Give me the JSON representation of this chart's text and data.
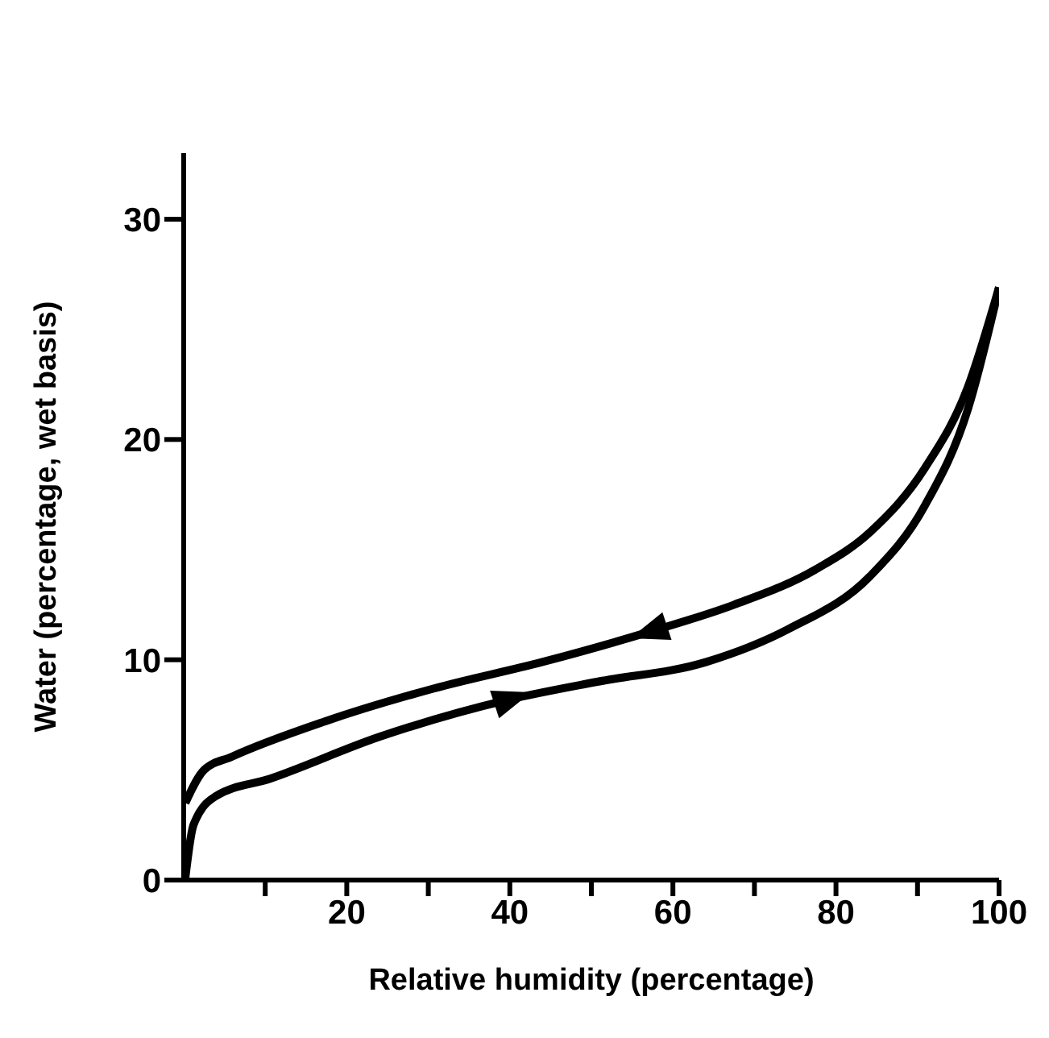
{
  "chart_data": {
    "type": "line",
    "xlabel": "Relative humidity (percentage)",
    "ylabel": "Water (percentage, wet basis)",
    "xlim": [
      0,
      100
    ],
    "ylim": [
      0,
      33
    ],
    "xticks": [
      {
        "value": 10,
        "label": null
      },
      20,
      {
        "value": 30,
        "label": null
      },
      40,
      {
        "value": 50,
        "label": null
      },
      60,
      {
        "value": 70,
        "label": null
      },
      80,
      {
        "value": 90,
        "label": null
      },
      100
    ],
    "yticks": [
      0,
      10,
      20,
      30
    ],
    "series": [
      {
        "color": "#000000",
        "x": [
          0.2,
          2.5,
          5.9,
          17.3,
          30.7,
          44,
          57.4,
          67.5,
          77.5,
          84.2,
          90.9,
          96.2,
          100
        ],
        "values": [
          3.5,
          5.0,
          5.6,
          7.2,
          8.7,
          9.9,
          11.3,
          12.5,
          14.1,
          15.8,
          18.7,
          22.4,
          26.9
        ]
      },
      {
        "color": "#000000",
        "x": [
          0.2,
          1.2,
          3.9,
          10.6,
          24,
          40,
          50.7,
          64.1,
          74.2,
          84.2,
          90.9,
          96.2,
          100
        ],
        "values": [
          0.1,
          2.5,
          3.8,
          4.6,
          6.5,
          8.2,
          9.0,
          9.9,
          11.4,
          13.8,
          17.0,
          21.4,
          26.9
        ]
      }
    ]
  }
}
